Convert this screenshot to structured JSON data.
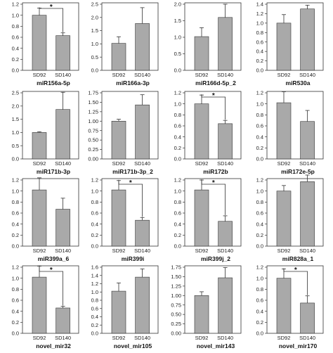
{
  "figure": {
    "colors": {
      "bar": "#a9a9a9",
      "bar_stroke": "#333333",
      "axis": "#333333",
      "frame": "#333333"
    }
  },
  "chart_data": [
    {
      "type": "bar",
      "title": "miR156a-5p",
      "categories": [
        "SD92",
        "SD140"
      ],
      "values": [
        1.0,
        0.63
      ],
      "errors": [
        0.13,
        0.05
      ],
      "ylim": [
        0,
        1.2
      ],
      "yticks": [
        "0.0",
        "0.2",
        "0.4",
        "0.6",
        "0.8",
        "1.0",
        "1.2"
      ],
      "significance": "*"
    },
    {
      "type": "bar",
      "title": "miR166a-3p",
      "categories": [
        "SD92",
        "SD140"
      ],
      "values": [
        1.02,
        1.77
      ],
      "errors": [
        0.25,
        0.6
      ],
      "ylim": [
        0,
        2.5
      ],
      "yticks": [
        "0.0",
        "0.5",
        "1.0",
        "1.5",
        "2.0",
        "2.5"
      ],
      "significance": ""
    },
    {
      "type": "bar",
      "title": "miR166d-5p_2",
      "categories": [
        "SD92",
        "SD140"
      ],
      "values": [
        1.02,
        1.6
      ],
      "errors": [
        0.27,
        0.4
      ],
      "ylim": [
        0,
        2.0
      ],
      "yticks": [
        "0.0",
        "0.5",
        "1.0",
        "1.5",
        "2.0"
      ],
      "significance": ""
    },
    {
      "type": "bar",
      "title": "miR530a",
      "categories": [
        "SD92",
        "SD140"
      ],
      "values": [
        1.0,
        1.3
      ],
      "errors": [
        0.18,
        0.08
      ],
      "ylim": [
        0,
        1.4
      ],
      "yticks": [
        "0.0",
        "0.2",
        "0.4",
        "0.6",
        "0.8",
        "1.0",
        "1.2",
        "1.4"
      ],
      "significance": ""
    },
    {
      "type": "bar",
      "title": "miR171b-3p",
      "categories": [
        "SD92",
        "SD140"
      ],
      "values": [
        1.0,
        1.87
      ],
      "errors": [
        0.03,
        0.65
      ],
      "ylim": [
        0,
        2.5
      ],
      "yticks": [
        "0.0",
        "0.5",
        "1.0",
        "1.5",
        "2.0",
        "2.5"
      ],
      "significance": ""
    },
    {
      "type": "bar",
      "title": "miR171b-3p_2",
      "categories": [
        "SD92",
        "SD140"
      ],
      "values": [
        1.0,
        1.43
      ],
      "errors": [
        0.05,
        0.27
      ],
      "ylim": [
        0,
        1.75
      ],
      "yticks": [
        "0.00",
        "0.25",
        "0.50",
        "0.75",
        "1.00",
        "1.25",
        "1.50",
        "1.75"
      ],
      "significance": ""
    },
    {
      "type": "bar",
      "title": "miR172b",
      "categories": [
        "SD92",
        "SD140"
      ],
      "values": [
        1.0,
        0.64
      ],
      "errors": [
        0.16,
        0.06
      ],
      "ylim": [
        0,
        1.2
      ],
      "yticks": [
        "0.0",
        "0.2",
        "0.4",
        "0.6",
        "0.8",
        "1.0",
        "1.2"
      ],
      "significance": "*"
    },
    {
      "type": "bar",
      "title": "miR172e-5p",
      "categories": [
        "SD92",
        "SD140"
      ],
      "values": [
        1.02,
        0.68
      ],
      "errors": [
        0.2,
        0.2
      ],
      "ylim": [
        0,
        1.2
      ],
      "yticks": [
        "0.0",
        "0.2",
        "0.4",
        "0.6",
        "0.8",
        "1.0",
        "1.2"
      ],
      "significance": ""
    },
    {
      "type": "bar",
      "title": "miR399a_6",
      "categories": [
        "SD92",
        "SD140"
      ],
      "values": [
        1.02,
        0.67
      ],
      "errors": [
        0.22,
        0.2
      ],
      "ylim": [
        0,
        1.2
      ],
      "yticks": [
        "0.0",
        "0.2",
        "0.4",
        "0.6",
        "0.8",
        "1.0",
        "1.2"
      ],
      "significance": ""
    },
    {
      "type": "bar",
      "title": "miR399i",
      "categories": [
        "SD92",
        "SD140"
      ],
      "values": [
        1.02,
        0.47
      ],
      "errors": [
        0.17,
        0.05
      ],
      "ylim": [
        0,
        1.2
      ],
      "yticks": [
        "0.0",
        "0.2",
        "0.4",
        "0.6",
        "0.8",
        "1.0",
        "1.2"
      ],
      "significance": "*"
    },
    {
      "type": "bar",
      "title": "miR399j_2",
      "categories": [
        "SD92",
        "SD140"
      ],
      "values": [
        1.02,
        0.45
      ],
      "errors": [
        0.18,
        0.1
      ],
      "ylim": [
        0,
        1.2
      ],
      "yticks": [
        "0.0",
        "0.2",
        "0.4",
        "0.6",
        "0.8",
        "1.0",
        "1.2"
      ],
      "significance": "*"
    },
    {
      "type": "bar",
      "title": "miR828a_1",
      "categories": [
        "SD92",
        "SD140"
      ],
      "values": [
        1.0,
        1.17
      ],
      "errors": [
        0.1,
        0.12
      ],
      "ylim": [
        0,
        1.2
      ],
      "yticks": [
        "0.0",
        "0.2",
        "0.4",
        "0.6",
        "0.8",
        "1.0",
        "1.2"
      ],
      "significance": ""
    },
    {
      "type": "bar",
      "title": "novel_mir32",
      "categories": [
        "SD92",
        "SD140"
      ],
      "values": [
        1.02,
        0.46
      ],
      "errors": [
        0.2,
        0.03
      ],
      "ylim": [
        0,
        1.2
      ],
      "yticks": [
        "0.0",
        "0.2",
        "0.4",
        "0.6",
        "0.8",
        "1.0",
        "1.2"
      ],
      "significance": "*"
    },
    {
      "type": "bar",
      "title": "novel_mir105",
      "categories": [
        "SD92",
        "SD140"
      ],
      "values": [
        1.02,
        1.36
      ],
      "errors": [
        0.2,
        0.2
      ],
      "ylim": [
        0,
        1.6
      ],
      "yticks": [
        "0.0",
        "0.2",
        "0.4",
        "0.6",
        "0.8",
        "1.0",
        "1.2",
        "1.4",
        "1.6"
      ],
      "significance": ""
    },
    {
      "type": "bar",
      "title": "novel_mir143",
      "categories": [
        "SD92",
        "SD140"
      ],
      "values": [
        1.0,
        1.47
      ],
      "errors": [
        0.1,
        0.27
      ],
      "ylim": [
        0,
        1.75
      ],
      "yticks": [
        "0.00",
        "0.25",
        "0.50",
        "0.75",
        "1.00",
        "1.25",
        "1.50",
        "1.75"
      ],
      "significance": ""
    },
    {
      "type": "bar",
      "title": "novel_mir170",
      "categories": [
        "SD92",
        "SD140"
      ],
      "values": [
        1.0,
        0.55
      ],
      "errors": [
        0.17,
        0.13
      ],
      "ylim": [
        0,
        1.2
      ],
      "yticks": [
        "0.0",
        "0.2",
        "0.4",
        "0.6",
        "0.8",
        "1.0",
        "1.2"
      ],
      "significance": "*"
    }
  ]
}
